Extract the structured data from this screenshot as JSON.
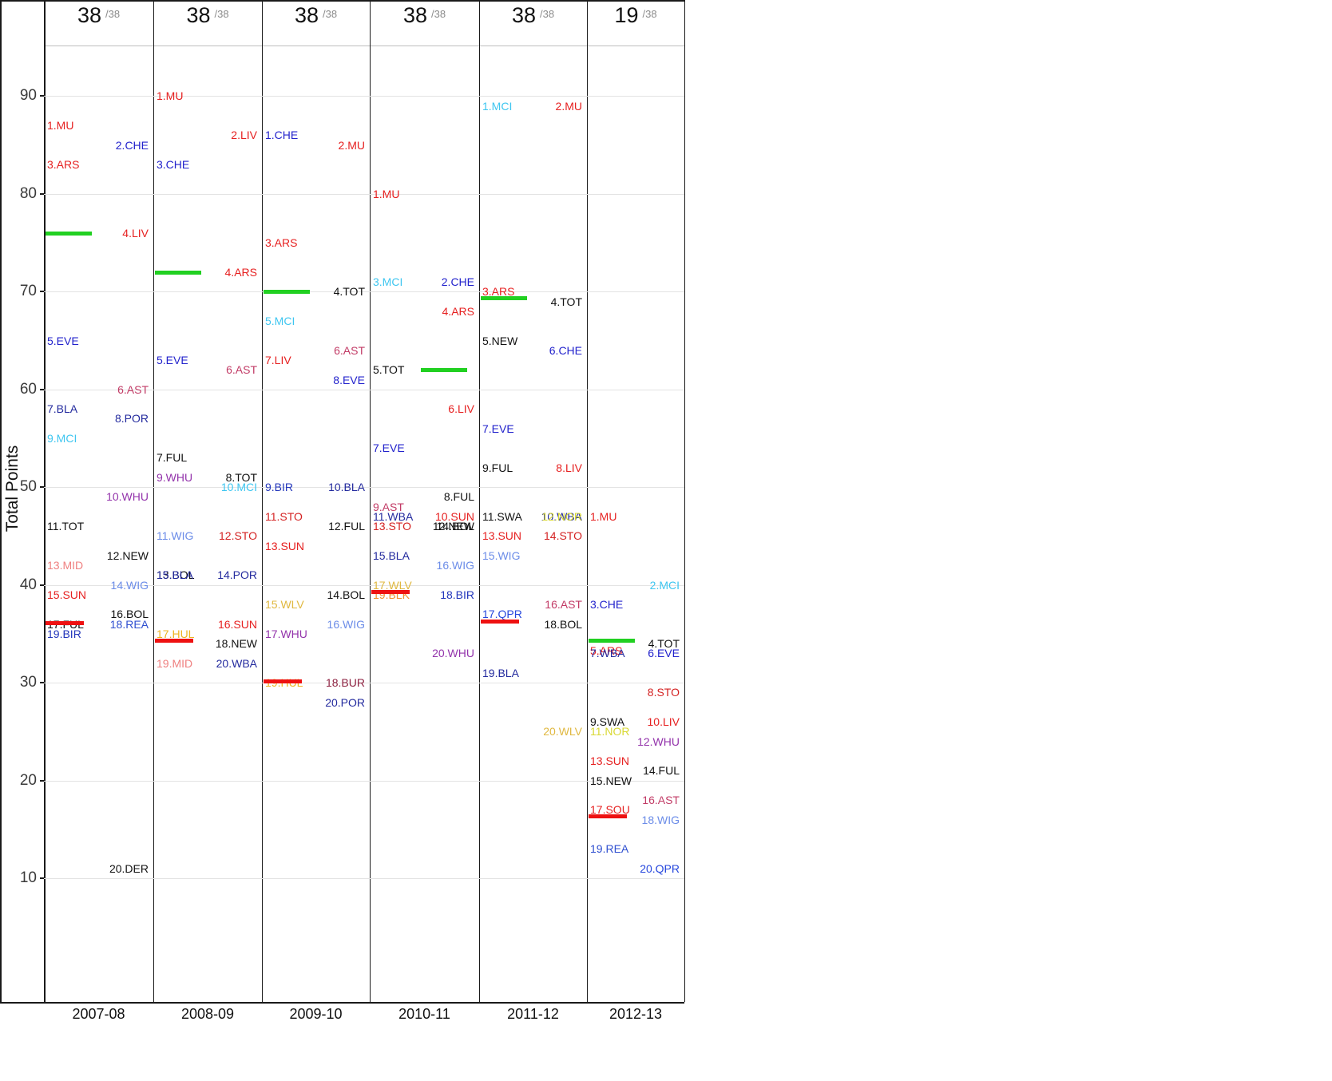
{
  "y_axis_title": "Total Points",
  "line_colors": {
    "champions_league": "#21d021",
    "relegation": "#ee1111"
  },
  "team_colors": {
    "MU": "#e62020",
    "CHE": "#2222cc",
    "ARS": "#e62020",
    "LIV": "#e62020",
    "EVE": "#2222cc",
    "AST": "#c23b66",
    "POR": "#232a9e",
    "BLA": "#232a9e",
    "MCI": "#3ec6f0",
    "WHU": "#9333ab",
    "TOT": "#111111",
    "NEW": "#111111",
    "MID": "#ef8080",
    "WIG": "#6b8ce8",
    "SUN": "#e62020",
    "BOL": "#111111",
    "FUL": "#111111",
    "REA": "#2f4fd0",
    "BIR": "#2336bb",
    "DER": "#111111",
    "HUL": "#eeb422",
    "STO": "#d42222",
    "WBA": "#232a9e",
    "BUR": "#8d2140",
    "WLV": "#e0b840",
    "SWA": "#111111",
    "NOR": "#d8d832",
    "QPR": "#2546dd",
    "SOU": "#e62020",
    "BLK": "#f09030"
  },
  "chart_data": {
    "type": "scatter",
    "title": "",
    "xlabel": "",
    "ylabel": "Total Points",
    "ylim": [
      5,
      95
    ],
    "yticks": [
      90,
      80,
      70,
      60,
      50,
      40,
      30,
      20,
      10
    ],
    "grid": true,
    "seasons": [
      {
        "label": "2007-08",
        "games_played": "38",
        "games_suffix": "/38",
        "cl_line": {
          "points": 76,
          "side": "left"
        },
        "rel_line": {
          "points": 36.1,
          "side": "left"
        },
        "teams": [
          {
            "rank": 1,
            "abbr": "MU",
            "points": 87,
            "side": "left"
          },
          {
            "rank": 2,
            "abbr": "CHE",
            "points": 85,
            "side": "right"
          },
          {
            "rank": 3,
            "abbr": "ARS",
            "points": 83,
            "side": "left"
          },
          {
            "rank": 4,
            "abbr": "LIV",
            "points": 76,
            "side": "right"
          },
          {
            "rank": 5,
            "abbr": "EVE",
            "points": 65,
            "side": "left"
          },
          {
            "rank": 6,
            "abbr": "AST",
            "points": 60,
            "side": "right"
          },
          {
            "rank": 7,
            "abbr": "BLA",
            "points": 58,
            "side": "left"
          },
          {
            "rank": 8,
            "abbr": "POR",
            "points": 57,
            "side": "right"
          },
          {
            "rank": 9,
            "abbr": "MCI",
            "points": 55,
            "side": "left"
          },
          {
            "rank": 10,
            "abbr": "WHU",
            "points": 49,
            "side": "right"
          },
          {
            "rank": 11,
            "abbr": "TOT",
            "points": 46,
            "side": "left"
          },
          {
            "rank": 12,
            "abbr": "NEW",
            "points": 43,
            "side": "right"
          },
          {
            "rank": 13,
            "abbr": "MID",
            "points": 42,
            "side": "left"
          },
          {
            "rank": 14,
            "abbr": "WIG",
            "points": 40,
            "side": "right"
          },
          {
            "rank": 15,
            "abbr": "SUN",
            "points": 39,
            "side": "left"
          },
          {
            "rank": 16,
            "abbr": "BOL",
            "points": 37,
            "side": "right"
          },
          {
            "rank": 17,
            "abbr": "FUL",
            "points": 36,
            "side": "left"
          },
          {
            "rank": 18,
            "abbr": "REA",
            "points": 36,
            "side": "right"
          },
          {
            "rank": 19,
            "abbr": "BIR",
            "points": 35,
            "side": "left"
          },
          {
            "rank": 20,
            "abbr": "DER",
            "points": 11,
            "side": "right"
          }
        ]
      },
      {
        "label": "2008-09",
        "games_played": "38",
        "games_suffix": "/38",
        "cl_line": {
          "points": 72,
          "side": "left"
        },
        "rel_line": {
          "points": 34.3,
          "side": "left"
        },
        "teams": [
          {
            "rank": 1,
            "abbr": "MU",
            "points": 90,
            "side": "left"
          },
          {
            "rank": 2,
            "abbr": "LIV",
            "points": 86,
            "side": "right"
          },
          {
            "rank": 3,
            "abbr": "CHE",
            "points": 83,
            "side": "left"
          },
          {
            "rank": 4,
            "abbr": "ARS",
            "points": 72,
            "side": "right"
          },
          {
            "rank": 5,
            "abbr": "EVE",
            "points": 63,
            "side": "left"
          },
          {
            "rank": 6,
            "abbr": "AST",
            "points": 62,
            "side": "right"
          },
          {
            "rank": 7,
            "abbr": "FUL",
            "points": 53,
            "side": "left"
          },
          {
            "rank": 8,
            "abbr": "TOT",
            "points": 51,
            "side": "right"
          },
          {
            "rank": 9,
            "abbr": "WHU",
            "points": 51,
            "side": "left"
          },
          {
            "rank": 10,
            "abbr": "MCI",
            "points": 50,
            "side": "right"
          },
          {
            "rank": 11,
            "abbr": "WIG",
            "points": 45,
            "side": "left"
          },
          {
            "rank": 12,
            "abbr": "STO",
            "points": 45,
            "side": "right"
          },
          {
            "rank": 13,
            "abbr": "BOL",
            "points": 41,
            "side": "left"
          },
          {
            "rank": 14,
            "abbr": "POR",
            "points": 41,
            "side": "right"
          },
          {
            "rank": 15,
            "abbr": "BLA",
            "points": 41,
            "side": "left"
          },
          {
            "rank": 16,
            "abbr": "SUN",
            "points": 36,
            "side": "right"
          },
          {
            "rank": 17,
            "abbr": "HUL",
            "points": 35,
            "side": "left"
          },
          {
            "rank": 18,
            "abbr": "NEW",
            "points": 34,
            "side": "right"
          },
          {
            "rank": 19,
            "abbr": "MID",
            "points": 32,
            "side": "left"
          },
          {
            "rank": 20,
            "abbr": "WBA",
            "points": 32,
            "side": "right"
          }
        ]
      },
      {
        "label": "2009-10",
        "games_played": "38",
        "games_suffix": "/38",
        "cl_line": {
          "points": 70,
          "side": "left"
        },
        "rel_line": {
          "points": 30.2,
          "side": "left"
        },
        "teams": [
          {
            "rank": 1,
            "abbr": "CHE",
            "points": 86,
            "side": "left"
          },
          {
            "rank": 2,
            "abbr": "MU",
            "points": 85,
            "side": "right"
          },
          {
            "rank": 3,
            "abbr": "ARS",
            "points": 75,
            "side": "left"
          },
          {
            "rank": 4,
            "abbr": "TOT",
            "points": 70,
            "side": "right"
          },
          {
            "rank": 5,
            "abbr": "MCI",
            "points": 67,
            "side": "left"
          },
          {
            "rank": 6,
            "abbr": "AST",
            "points": 64,
            "side": "right"
          },
          {
            "rank": 7,
            "abbr": "LIV",
            "points": 63,
            "side": "left"
          },
          {
            "rank": 8,
            "abbr": "EVE",
            "points": 61,
            "side": "right"
          },
          {
            "rank": 9,
            "abbr": "BIR",
            "points": 50,
            "side": "left"
          },
          {
            "rank": 10,
            "abbr": "BLA",
            "points": 50,
            "side": "right"
          },
          {
            "rank": 11,
            "abbr": "STO",
            "points": 47,
            "side": "left"
          },
          {
            "rank": 12,
            "abbr": "FUL",
            "points": 46,
            "side": "right"
          },
          {
            "rank": 13,
            "abbr": "SUN",
            "points": 44,
            "side": "left"
          },
          {
            "rank": 14,
            "abbr": "BOL",
            "points": 39,
            "side": "right"
          },
          {
            "rank": 15,
            "abbr": "WLV",
            "points": 38,
            "side": "left"
          },
          {
            "rank": 16,
            "abbr": "WIG",
            "points": 36,
            "side": "right"
          },
          {
            "rank": 17,
            "abbr": "WHU",
            "points": 35,
            "side": "left"
          },
          {
            "rank": 18,
            "abbr": "BUR",
            "points": 30,
            "side": "right"
          },
          {
            "rank": 19,
            "abbr": "HUL",
            "points": 30,
            "side": "left"
          },
          {
            "rank": 20,
            "abbr": "POR",
            "points": 28,
            "side": "right"
          }
        ]
      },
      {
        "label": "2010-11",
        "games_played": "38",
        "games_suffix": "/38",
        "cl_line": {
          "points": 62,
          "side": "right"
        },
        "rel_line": {
          "points": 39.3,
          "side": "left"
        },
        "teams": [
          {
            "rank": 1,
            "abbr": "MU",
            "points": 80,
            "side": "left"
          },
          {
            "rank": 2,
            "abbr": "CHE",
            "points": 71,
            "side": "right"
          },
          {
            "rank": 3,
            "abbr": "MCI",
            "points": 71,
            "side": "left"
          },
          {
            "rank": 4,
            "abbr": "ARS",
            "points": 68,
            "side": "right"
          },
          {
            "rank": 5,
            "abbr": "TOT",
            "points": 62,
            "side": "left"
          },
          {
            "rank": 6,
            "abbr": "LIV",
            "points": 58,
            "side": "right"
          },
          {
            "rank": 7,
            "abbr": "EVE",
            "points": 54,
            "side": "left"
          },
          {
            "rank": 8,
            "abbr": "FUL",
            "points": 49,
            "side": "right"
          },
          {
            "rank": 9,
            "abbr": "AST",
            "points": 48,
            "side": "left"
          },
          {
            "rank": 10,
            "abbr": "SUN",
            "points": 47,
            "side": "right"
          },
          {
            "rank": 11,
            "abbr": "WBA",
            "points": 47,
            "side": "left"
          },
          {
            "rank": 12,
            "abbr": "NEW",
            "points": 46,
            "side": "right"
          },
          {
            "rank": 13,
            "abbr": "STO",
            "points": 46,
            "side": "left"
          },
          {
            "rank": 14,
            "abbr": "BOL",
            "points": 46,
            "side": "right"
          },
          {
            "rank": 15,
            "abbr": "BLA",
            "points": 43,
            "side": "left"
          },
          {
            "rank": 16,
            "abbr": "WIG",
            "points": 42,
            "side": "right"
          },
          {
            "rank": 17,
            "abbr": "WLV",
            "points": 40,
            "side": "left"
          },
          {
            "rank": 18,
            "abbr": "BIR",
            "points": 39,
            "side": "right"
          },
          {
            "rank": 19,
            "abbr": "BLK",
            "points": 39,
            "side": "left"
          },
          {
            "rank": 20,
            "abbr": "WHU",
            "points": 33,
            "side": "right"
          }
        ]
      },
      {
        "label": "2011-12",
        "games_played": "38",
        "games_suffix": "/38",
        "cl_line": {
          "points": 69.4,
          "side": "left"
        },
        "rel_line": {
          "points": 36.3,
          "side": "left"
        },
        "teams": [
          {
            "rank": 1,
            "abbr": "MCI",
            "points": 89,
            "side": "left"
          },
          {
            "rank": 2,
            "abbr": "MU",
            "points": 89,
            "side": "right"
          },
          {
            "rank": 3,
            "abbr": "ARS",
            "points": 70,
            "side": "left"
          },
          {
            "rank": 4,
            "abbr": "TOT",
            "points": 69,
            "side": "right"
          },
          {
            "rank": 5,
            "abbr": "NEW",
            "points": 65,
            "side": "left"
          },
          {
            "rank": 6,
            "abbr": "CHE",
            "points": 64,
            "side": "right"
          },
          {
            "rank": 7,
            "abbr": "EVE",
            "points": 56,
            "side": "left"
          },
          {
            "rank": 8,
            "abbr": "LIV",
            "points": 52,
            "side": "right"
          },
          {
            "rank": 9,
            "abbr": "FUL",
            "points": 52,
            "side": "left"
          },
          {
            "rank": 10,
            "abbr": "WBA",
            "points": 47,
            "side": "right"
          },
          {
            "rank": 11,
            "abbr": "SWA",
            "points": 47,
            "side": "left"
          },
          {
            "rank": 12,
            "abbr": "NOR",
            "points": 47,
            "side": "right"
          },
          {
            "rank": 13,
            "abbr": "SUN",
            "points": 45,
            "side": "left"
          },
          {
            "rank": 14,
            "abbr": "STO",
            "points": 45,
            "side": "right"
          },
          {
            "rank": 15,
            "abbr": "WIG",
            "points": 43,
            "side": "left"
          },
          {
            "rank": 16,
            "abbr": "AST",
            "points": 38,
            "side": "right"
          },
          {
            "rank": 17,
            "abbr": "QPR",
            "points": 37,
            "side": "left"
          },
          {
            "rank": 18,
            "abbr": "BOL",
            "points": 36,
            "side": "right"
          },
          {
            "rank": 19,
            "abbr": "BLA",
            "points": 31,
            "side": "left"
          },
          {
            "rank": 20,
            "abbr": "WLV",
            "points": 25,
            "side": "right"
          }
        ]
      },
      {
        "label": "2012-13",
        "games_played": "19",
        "games_suffix": "/38",
        "cl_line": {
          "points": 34.3,
          "side": "left"
        },
        "rel_line": {
          "points": 16.4,
          "side": "left"
        },
        "teams": [
          {
            "rank": 1,
            "abbr": "MU",
            "points": 47,
            "side": "left"
          },
          {
            "rank": 2,
            "abbr": "MCI",
            "points": 40,
            "side": "right"
          },
          {
            "rank": 3,
            "abbr": "CHE",
            "points": 38,
            "side": "left"
          },
          {
            "rank": 4,
            "abbr": "TOT",
            "points": 34,
            "side": "right"
          },
          {
            "rank": 5,
            "abbr": "ARS",
            "points": 33.3,
            "side": "left"
          },
          {
            "rank": 6,
            "abbr": "EVE",
            "points": 33,
            "side": "right"
          },
          {
            "rank": 7,
            "abbr": "WBA",
            "points": 33,
            "side": "left"
          },
          {
            "rank": 8,
            "abbr": "STO",
            "points": 29,
            "side": "right"
          },
          {
            "rank": 9,
            "abbr": "SWA",
            "points": 26,
            "side": "left"
          },
          {
            "rank": 10,
            "abbr": "LIV",
            "points": 26,
            "side": "right"
          },
          {
            "rank": 11,
            "abbr": "NOR",
            "points": 25,
            "side": "left"
          },
          {
            "rank": 12,
            "abbr": "WHU",
            "points": 24,
            "side": "right"
          },
          {
            "rank": 13,
            "abbr": "SUN",
            "points": 22,
            "side": "left"
          },
          {
            "rank": 14,
            "abbr": "FUL",
            "points": 21,
            "side": "right"
          },
          {
            "rank": 15,
            "abbr": "NEW",
            "points": 20,
            "side": "left"
          },
          {
            "rank": 16,
            "abbr": "AST",
            "points": 18,
            "side": "right"
          },
          {
            "rank": 17,
            "abbr": "SOU",
            "points": 17,
            "side": "left"
          },
          {
            "rank": 18,
            "abbr": "WIG",
            "points": 16,
            "side": "right"
          },
          {
            "rank": 19,
            "abbr": "REA",
            "points": 13,
            "side": "left"
          },
          {
            "rank": 20,
            "abbr": "QPR",
            "points": 11,
            "side": "right"
          }
        ]
      }
    ]
  }
}
